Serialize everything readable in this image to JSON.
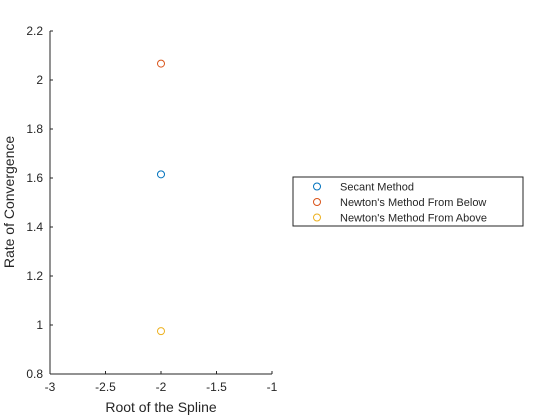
{
  "chart_data": {
    "type": "scatter",
    "title": "",
    "xlabel": "Root of the Spline",
    "ylabel": "Rate of Convergence",
    "xlim": [
      -3,
      -1
    ],
    "ylim": [
      0.8,
      2.2
    ],
    "x_ticks": [
      "-3",
      "-2.5",
      "-2",
      "-1.5",
      "-1"
    ],
    "y_ticks": [
      "0.8",
      "1",
      "1.2",
      "1.4",
      "1.6",
      "1.8",
      "2",
      "2.2"
    ],
    "grid": false,
    "legend_position": "outside-right",
    "marker": "open-circle",
    "series": [
      {
        "name": "Secant Method",
        "color": "#0072BD",
        "points": [
          {
            "x": -2,
            "y": 1.615
          }
        ]
      },
      {
        "name": "Newton's Method From Below",
        "color": "#D95319",
        "points": [
          {
            "x": -2,
            "y": 2.067
          }
        ]
      },
      {
        "name": "Newton's Method From Above",
        "color": "#EDB120",
        "points": [
          {
            "x": -2,
            "y": 0.975
          }
        ]
      }
    ]
  }
}
